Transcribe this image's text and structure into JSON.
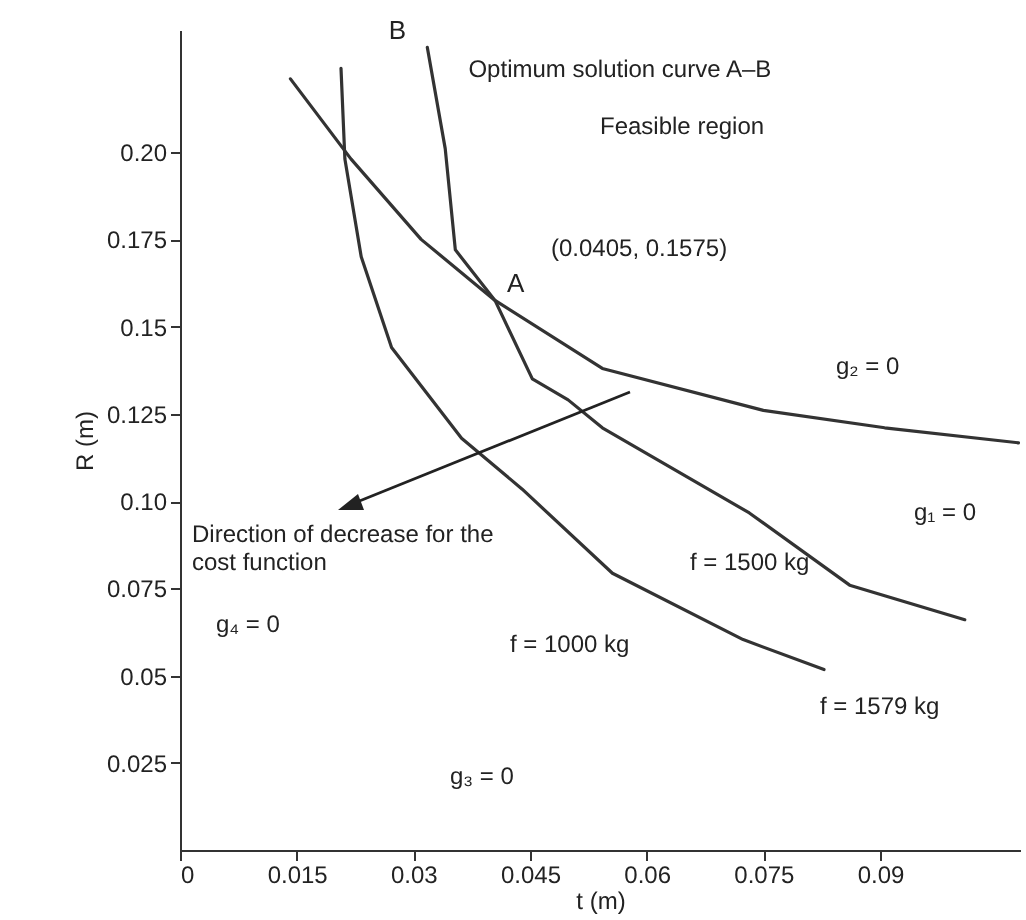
{
  "chart_data": {
    "type": "line",
    "xlabel": "t (m)",
    "ylabel": "R (m)",
    "xlim": [
      0,
      0.108
    ],
    "ylim": [
      0,
      0.235
    ],
    "xticks": [
      0,
      0.015,
      0.03,
      0.045,
      0.06,
      0.075,
      0.09
    ],
    "yticks": [
      {
        "value": 0.025,
        "label": "0.025"
      },
      {
        "value": 0.05,
        "label": "0.05"
      },
      {
        "value": 0.075,
        "label": "0.075"
      },
      {
        "value": 0.1,
        "label": "0.10"
      },
      {
        "value": 0.125,
        "label": "0.125"
      },
      {
        "value": 0.15,
        "label": "0.15"
      },
      {
        "value": 0.175,
        "label": "0.175"
      },
      {
        "value": 0.2,
        "label": "0.20"
      }
    ],
    "grid": false,
    "marker": "none",
    "line_style": "solid",
    "series": [
      {
        "color": "#333333",
        "x": [
          0.0318,
          0.0341,
          0.0354,
          0.0405,
          0.0453,
          0.0499,
          0.0543,
          0.0732,
          0.0861,
          0.1009
        ],
        "values": [
          0.23,
          0.201,
          0.172,
          0.1575,
          0.135,
          0.129,
          0.121,
          0.0966,
          0.0759,
          0.066
        ]
      },
      {
        "color": "#333333",
        "x": [
          0.0142,
          0.022,
          0.031,
          0.0405,
          0.0543,
          0.075,
          0.0906,
          0.1078
        ],
        "values": [
          0.221,
          0.198,
          0.175,
          0.1575,
          0.138,
          0.126,
          0.121,
          0.1167
        ]
      },
      {
        "color": "#333333",
        "x": [
          0.0207,
          0.0212,
          0.0233,
          0.0272,
          0.0362,
          0.044,
          0.0556,
          0.0724,
          0.0828
        ],
        "values": [
          0.224,
          0.198,
          0.17,
          0.144,
          0.118,
          0.1034,
          0.0793,
          0.0603,
          0.0517
        ]
      }
    ],
    "annotations": [
      {
        "text": "B",
        "x": 0.0318,
        "y": 0.23
      },
      {
        "text": "A",
        "x": 0.0405,
        "y": 0.1575
      },
      {
        "text": "(0.0405, 0.1575)",
        "x": 0.0405,
        "y": 0.1575
      },
      {
        "text": "Optimum solution curve A–B",
        "x": 0.034,
        "y": 0.21
      },
      "g₂ = 0",
      "g₁ = 0",
      "f = 1500 kg",
      "f = 1579 kg",
      "f = 1000 kg",
      "g₃ = 0",
      "g₄ = 0",
      "Feasible region",
      "Direction of decrease for the cost function"
    ]
  }
}
